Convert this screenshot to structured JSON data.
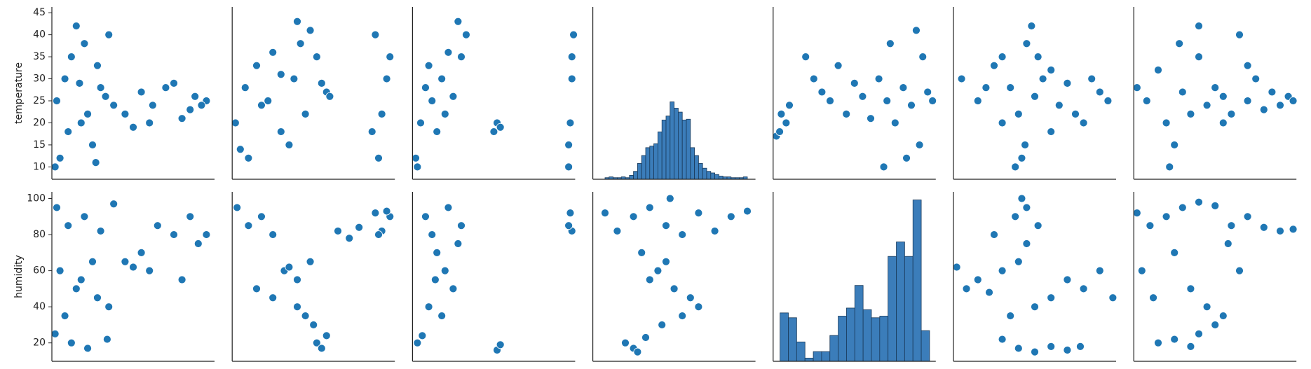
{
  "chart_data": [
    {
      "type": "scatter",
      "ylabel": "temperature",
      "color": "#1f77b4",
      "xlim": [
        0,
        100
      ],
      "ylim": [
        7.2,
        46.3
      ],
      "yticks": [
        10,
        15,
        20,
        25,
        30,
        35,
        40,
        45
      ],
      "x": [
        3,
        8,
        12,
        18,
        25,
        30,
        35,
        5,
        15,
        22,
        28,
        33,
        10,
        20,
        38,
        2,
        27,
        17,
        45,
        55,
        62,
        70,
        80,
        88,
        95,
        50,
        75,
        85,
        60,
        92
      ],
      "y": [
        25,
        30,
        35,
        20,
        15,
        28,
        40,
        12,
        42,
        22,
        33,
        26,
        18,
        38,
        24,
        10,
        11,
        29,
        22,
        27,
        24,
        28,
        21,
        26,
        25,
        19,
        29,
        23,
        20,
        24
      ]
    },
    {
      "type": "scatter",
      "color": "#1f77b4",
      "xlim": [
        0,
        100
      ],
      "ylim": [
        7.2,
        46.3
      ],
      "x": [
        2,
        8,
        15,
        22,
        30,
        38,
        45,
        52,
        58,
        10,
        25,
        35,
        48,
        40,
        42,
        5,
        18,
        55,
        60,
        30,
        88,
        92,
        95,
        90,
        97,
        86
      ],
      "y": [
        20,
        28,
        33,
        25,
        18,
        30,
        22,
        35,
        27,
        12,
        36,
        15,
        41,
        43,
        38,
        14,
        24,
        29,
        26,
        31,
        40,
        22,
        30,
        12,
        35,
        18
      ]
    },
    {
      "type": "scatter",
      "color": "#1f77b4",
      "xlim": [
        0,
        100
      ],
      "ylim": [
        7.2,
        46.3
      ],
      "x": [
        2,
        5,
        8,
        10,
        12,
        15,
        18,
        20,
        25,
        30,
        33,
        3,
        22,
        28,
        50,
        52,
        54,
        96,
        97,
        98,
        99,
        96,
        98
      ],
      "y": [
        12,
        20,
        28,
        33,
        25,
        18,
        30,
        22,
        26,
        35,
        40,
        10,
        36,
        43,
        18,
        20,
        19,
        10,
        20,
        30,
        40,
        15,
        35
      ]
    },
    {
      "type": "histogram",
      "color": "#3b7dba",
      "xlim": [
        6,
        46
      ],
      "ylim": [
        0,
        218
      ],
      "bins": [
        9,
        10,
        11,
        12,
        13,
        14,
        15,
        16,
        17,
        18,
        19,
        20,
        21,
        22,
        23,
        24,
        25,
        26,
        27,
        28,
        29,
        30,
        31,
        32,
        33,
        34,
        35,
        36,
        37,
        38,
        39,
        40,
        41,
        42,
        43,
        44
      ],
      "values": [
        2,
        3,
        2,
        2,
        3,
        2,
        5,
        10,
        20,
        30,
        40,
        42,
        45,
        60,
        75,
        80,
        98,
        90,
        85,
        75,
        76,
        40,
        30,
        20,
        14,
        10,
        8,
        6,
        4,
        3,
        3,
        2,
        2,
        2,
        3
      ]
    },
    {
      "type": "scatter",
      "color": "#1f77b4",
      "xlim": [
        0,
        100
      ],
      "ylim": [
        7.2,
        46.3
      ],
      "x": [
        2,
        5,
        8,
        10,
        4,
        20,
        25,
        30,
        35,
        40,
        45,
        50,
        55,
        60,
        65,
        70,
        72,
        75,
        80,
        85,
        88,
        90,
        95,
        98,
        68,
        82,
        92
      ],
      "y": [
        17,
        22,
        20,
        24,
        18,
        35,
        30,
        27,
        25,
        33,
        22,
        29,
        26,
        21,
        30,
        25,
        38,
        20,
        28,
        24,
        41,
        15,
        27,
        25,
        10,
        12,
        35
      ]
    },
    {
      "type": "scatter",
      "color": "#1f77b4",
      "xlim": [
        0,
        100
      ],
      "ylim": [
        7.2,
        46.3
      ],
      "x": [
        5,
        15,
        25,
        30,
        35,
        40,
        45,
        50,
        55,
        60,
        65,
        70,
        80,
        90,
        95,
        42,
        48,
        38,
        52,
        44,
        30,
        60,
        75,
        20,
        85
      ],
      "y": [
        30,
        25,
        33,
        20,
        28,
        22,
        38,
        26,
        30,
        18,
        24,
        29,
        20,
        27,
        25,
        12,
        42,
        10,
        35,
        15,
        35,
        32,
        22,
        28,
        30
      ]
    },
    {
      "type": "scatter",
      "color": "#1f77b4",
      "xlim": [
        0,
        100
      ],
      "ylim": [
        7.2,
        46.3
      ],
      "x": [
        2,
        8,
        15,
        20,
        25,
        30,
        35,
        40,
        45,
        50,
        55,
        60,
        65,
        70,
        75,
        80,
        85,
        90,
        95,
        98,
        22,
        40,
        28,
        55,
        70
      ],
      "y": [
        28,
        25,
        32,
        20,
        15,
        27,
        22,
        35,
        24,
        28,
        26,
        22,
        40,
        25,
        30,
        23,
        27,
        24,
        26,
        25,
        10,
        42,
        38,
        20,
        33
      ]
    },
    {
      "type": "scatter",
      "ylabel": "humidity",
      "color": "#1f77b4",
      "xlim": [
        0,
        100
      ],
      "ylim": [
        9.8,
        103.7
      ],
      "yticks": [
        20,
        40,
        60,
        80,
        100
      ],
      "x": [
        3,
        10,
        20,
        30,
        38,
        5,
        15,
        25,
        35,
        8,
        18,
        28,
        12,
        22,
        34,
        2,
        45,
        55,
        65,
        75,
        85,
        95,
        60,
        80,
        90,
        50
      ],
      "y": [
        95,
        85,
        90,
        82,
        97,
        60,
        50,
        65,
        40,
        35,
        55,
        45,
        20,
        17,
        22,
        25,
        65,
        70,
        85,
        80,
        90,
        80,
        60,
        55,
        75,
        62
      ]
    },
    {
      "type": "scatter",
      "color": "#1f77b4",
      "xlim": [
        0,
        100
      ],
      "ylim": [
        9.8,
        103.7
      ],
      "x": [
        3,
        10,
        18,
        25,
        32,
        40,
        48,
        15,
        25,
        35,
        45,
        52,
        55,
        58,
        40,
        50,
        65,
        72,
        78,
        88,
        92,
        97,
        90,
        95
      ],
      "y": [
        95,
        85,
        90,
        80,
        60,
        55,
        65,
        50,
        45,
        62,
        35,
        20,
        17,
        24,
        40,
        30,
        82,
        78,
        84,
        92,
        82,
        90,
        80,
        93
      ]
    },
    {
      "type": "scatter",
      "color": "#1f77b4",
      "xlim": [
        0,
        100
      ],
      "ylim": [
        9.8,
        103.7
      ],
      "x": [
        8,
        12,
        15,
        20,
        25,
        30,
        10,
        18,
        22,
        28,
        14,
        3,
        6,
        52,
        54,
        97,
        98,
        96
      ],
      "y": [
        90,
        80,
        70,
        60,
        50,
        85,
        40,
        35,
        95,
        75,
        55,
        20,
        24,
        16,
        19,
        92,
        82,
        85
      ]
    },
    {
      "type": "scatter",
      "color": "#1f77b4",
      "xlim": [
        6,
        46
      ],
      "ylim": [
        9.8,
        103.7
      ],
      "x": [
        9,
        12,
        16,
        20,
        24,
        28,
        32,
        36,
        40,
        44,
        18,
        22,
        26,
        30,
        20,
        24,
        28,
        32,
        25,
        14,
        16,
        19,
        17,
        23
      ],
      "y": [
        92,
        82,
        90,
        95,
        85,
        80,
        92,
        82,
        90,
        93,
        70,
        60,
        50,
        45,
        55,
        65,
        35,
        40,
        100,
        20,
        17,
        23,
        15,
        30
      ]
    },
    {
      "type": "histogram",
      "color": "#3b7dba",
      "xlim": [
        10,
        104
      ],
      "ylim": [
        0,
        105
      ],
      "bins": [
        14,
        18.8,
        23.6,
        28.4,
        33.2,
        38,
        42.8,
        47.6,
        52.4,
        57.2,
        62,
        66.8,
        71.6,
        76.4,
        81.2,
        86,
        90.8,
        95.6,
        100.4
      ],
      "values": [
        30,
        27,
        12,
        2,
        6,
        6,
        16,
        28,
        33,
        47,
        32,
        27,
        28,
        65,
        74,
        65,
        100,
        19
      ]
    },
    {
      "type": "scatter",
      "color": "#1f77b4",
      "xlim": [
        0,
        100
      ],
      "ylim": [
        9.8,
        103.7
      ],
      "x": [
        2,
        8,
        15,
        22,
        30,
        38,
        45,
        52,
        60,
        70,
        80,
        90,
        98,
        35,
        45,
        40,
        50,
        42,
        30,
        40,
        50,
        60,
        70,
        78,
        25
      ],
      "y": [
        62,
        50,
        55,
        48,
        60,
        90,
        75,
        85,
        45,
        55,
        50,
        60,
        45,
        35,
        95,
        65,
        40,
        100,
        22,
        17,
        15,
        18,
        16,
        18,
        80
      ]
    },
    {
      "type": "scatter",
      "color": "#1f77b4",
      "xlim": [
        0,
        100
      ],
      "ylim": [
        9.8,
        103.7
      ],
      "x": [
        2,
        10,
        20,
        30,
        40,
        50,
        60,
        70,
        80,
        90,
        98,
        5,
        12,
        25,
        35,
        45,
        55,
        65,
        15,
        25,
        35,
        40,
        58,
        50
      ],
      "y": [
        92,
        85,
        90,
        95,
        98,
        96,
        85,
        90,
        84,
        82,
        83,
        60,
        45,
        70,
        50,
        40,
        35,
        60,
        20,
        22,
        18,
        25,
        75,
        30
      ]
    }
  ]
}
